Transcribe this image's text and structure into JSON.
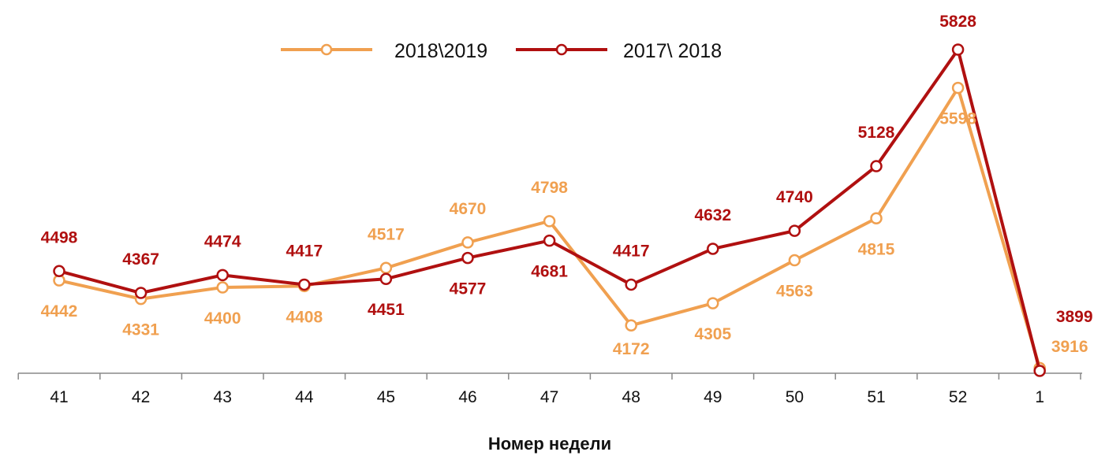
{
  "chart_data": {
    "type": "line",
    "title": "",
    "xlabel": "Номер недели",
    "ylabel": "",
    "categories": [
      "41",
      "42",
      "43",
      "44",
      "45",
      "46",
      "47",
      "48",
      "49",
      "50",
      "51",
      "52",
      "1"
    ],
    "ylim": [
      3899,
      5828
    ],
    "grid": false,
    "legend_position": "top-center",
    "series": [
      {
        "name": "2018\\2019",
        "color": "#F0A050",
        "values": [
          4442,
          4331,
          4400,
          4408,
          4517,
          4670,
          4798,
          4172,
          4305,
          4563,
          4815,
          5598,
          3916
        ],
        "labels": [
          "4442",
          "4331",
          "4400",
          "4408",
          "4517",
          "4670",
          "4798",
          "4172",
          "4305",
          "4563",
          "4815",
          "5598",
          "3916"
        ]
      },
      {
        "name": "2017\\ 2018",
        "color": "#B01010",
        "values": [
          4498,
          4367,
          4474,
          4417,
          4451,
          4577,
          4681,
          4417,
          4632,
          4740,
          5128,
          5828,
          3899
        ],
        "labels": [
          "4498",
          "4367",
          "4474",
          "4417",
          "4451",
          "4577",
          "4681",
          "4417",
          "4632",
          "4740",
          "5128",
          "5828",
          "3899"
        ]
      }
    ]
  }
}
